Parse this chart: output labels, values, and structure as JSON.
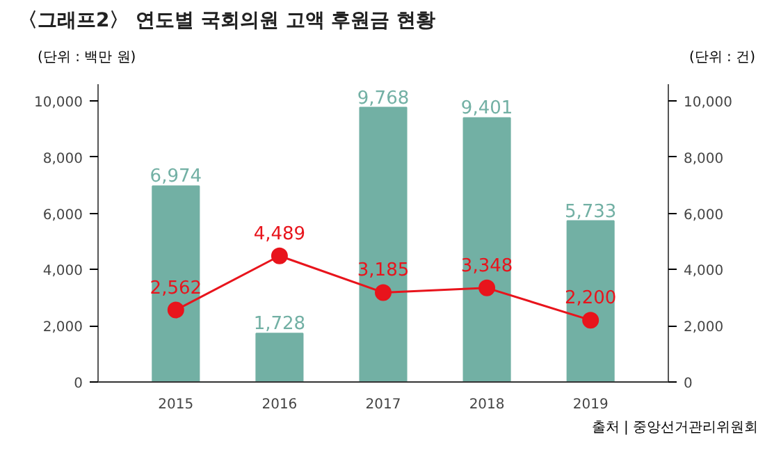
{
  "chart_data": {
    "type": "bar",
    "title": "〈그래프2〉 연도별 국회의원 고액 후원금 현황",
    "ylabel": "(단위 : 백만 원)",
    "y2label": "(단위 : 건)",
    "annotations": [
      "출처 | 중앙선거관리위원회"
    ],
    "categories": [
      "2015",
      "2016",
      "2017",
      "2018",
      "2019"
    ],
    "series": [
      {
        "color": "#72b0a4",
        "values": [
          6974,
          1728,
          9768,
          9401,
          5733
        ],
        "value_labels": [
          "6,974",
          "1,728",
          "9,768",
          "9,401",
          "5,733"
        ]
      },
      {
        "type": "line",
        "axis": "y2",
        "color": "#e8141c",
        "marker": "circle",
        "values": [
          2562,
          4489,
          3185,
          3348,
          2200
        ],
        "value_labels": [
          "2,562",
          "4,489",
          "3,185",
          "3,348",
          "2,200"
        ]
      }
    ],
    "ylim": [
      0,
      10600
    ],
    "yticks": [
      0,
      {
        "value": 2000,
        "label": "2,000"
      },
      {
        "value": 4000,
        "label": "4,000"
      },
      {
        "value": 6000,
        "label": "6,000"
      },
      {
        "value": 8000,
        "label": "8,000"
      },
      {
        "value": 10000,
        "label": "10,000"
      }
    ],
    "y2lim": [
      0,
      10600
    ],
    "y2ticks": [
      0,
      {
        "value": 2000,
        "label": "2,000"
      },
      {
        "value": 4000,
        "label": "4,000"
      },
      {
        "value": 6000,
        "label": "6,000"
      },
      {
        "value": 8000,
        "label": "8,000"
      },
      {
        "value": 10000,
        "label": "10,000"
      }
    ],
    "grid": false
  }
}
